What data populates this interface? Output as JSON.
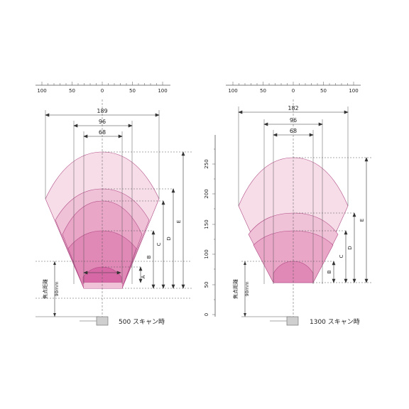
{
  "colors": {
    "zone_outer": "#f6dde8",
    "zone_2": "#f0c2d8",
    "zone_3": "#e9a6c7",
    "zone_4": "#e088b6",
    "zone_inner": "#d669a5",
    "stroke": "#b04a85",
    "dim_line": "#333333",
    "axis": "#555555"
  },
  "diagrams": [
    {
      "top_ruler_ticks": [
        "100",
        "50",
        "0",
        "50",
        "100"
      ],
      "width_labels": [
        "189",
        "96",
        "68"
      ],
      "side_labels": [
        "A",
        "B",
        "C",
        "D",
        "E"
      ],
      "focal_label": "焦点距離",
      "focal_value": "90mm",
      "caption": "500 スキャン時"
    },
    {
      "top_ruler_ticks": [
        "100",
        "50",
        "0",
        "50",
        "100"
      ],
      "width_labels": [
        "182",
        "96",
        "68"
      ],
      "side_labels": [
        "B",
        "C",
        "D",
        "E"
      ],
      "focal_label": "焦点距離",
      "focal_value": "90mm",
      "caption": "1300 スキャン時",
      "y_axis_ticks": [
        "250",
        "200",
        "150",
        "100",
        "50",
        "0"
      ]
    }
  ]
}
